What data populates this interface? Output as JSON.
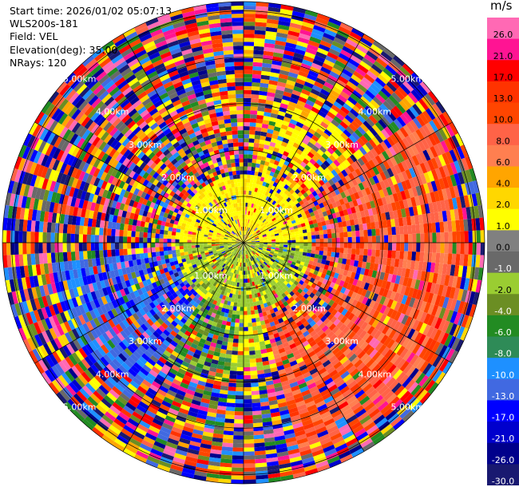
{
  "header": {
    "start_time": "Start time: 2026/01/02 05:07:13",
    "station": "WLS200s-181",
    "field": "Field: VEL",
    "elevation": "Elevation(deg): 35.00",
    "nrays": "NRays: 120"
  },
  "chart_data": {
    "type": "heatmap",
    "projection": "polar-ppi",
    "field": "VEL",
    "unit": "m/s",
    "elevation_deg": 35.0,
    "n_rays": 120,
    "n_gates": 60,
    "range_rings": [
      {
        "label": "1.00km",
        "value_km": 1.0
      },
      {
        "label": "2.00km",
        "value_km": 2.0
      },
      {
        "label": "3.00km",
        "value_km": 3.0
      },
      {
        "label": "4.00km",
        "value_km": 4.0
      },
      {
        "label": "5.00km",
        "value_km": 5.0
      }
    ],
    "max_range_km": 5.2,
    "colorbar": {
      "unit_label": "m/s",
      "ticks": [
        "26.0",
        "21.0",
        "17.0",
        "13.0",
        "10.0",
        "8.0",
        "6.0",
        "4.0",
        "2.0",
        "1.0",
        "0.0",
        "-1.0",
        "-2.0",
        "-4.0",
        "-6.0",
        "-8.0",
        "-10.0",
        "-13.0",
        "-17.0",
        "-21.0",
        "-26.0",
        "-30.0"
      ],
      "colors": [
        "#ff69b4",
        "#ff1493",
        "#ff0000",
        "#ff3300",
        "#ff4500",
        "#ff6347",
        "#ff7f50",
        "#ffa500",
        "#ffd700",
        "#ffff00",
        "#808080",
        "#696969",
        "#9acd32",
        "#6b8e23",
        "#228b22",
        "#2e8b57",
        "#1e90ff",
        "#4169e1",
        "#0000ff",
        "#0000cd",
        "#00008b",
        "#191970"
      ]
    }
  }
}
